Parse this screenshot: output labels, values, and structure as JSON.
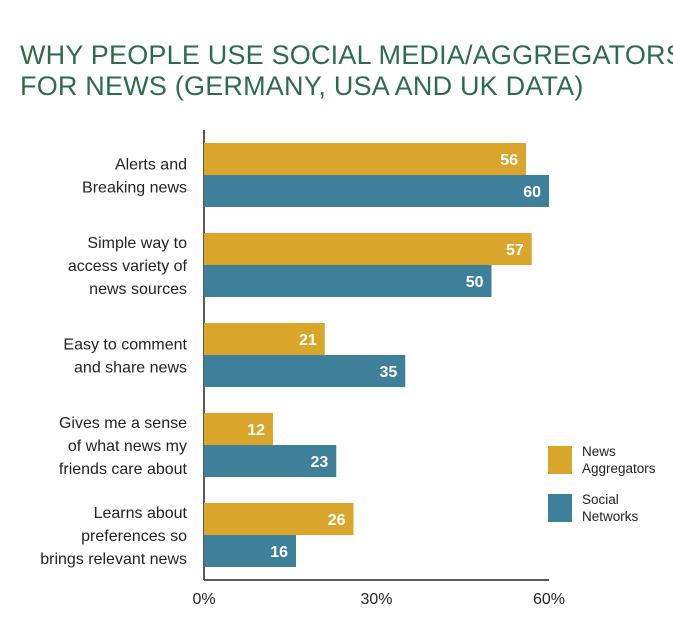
{
  "chart_data": {
    "type": "bar",
    "orientation": "horizontal",
    "title": "WHY PEOPLE USE SOCIAL MEDIA/AGGREGATORS FOR NEWS (GERMANY, USA AND UK DATA)",
    "title_lines": [
      "WHY PEOPLE USE SOCIAL MEDIA/AGGREGATORS",
      "FOR NEWS (GERMANY, USA AND UK DATA)"
    ],
    "categories": [
      [
        "Alerts and",
        "Breaking news"
      ],
      [
        "Simple way to",
        "access variety of",
        "news sources"
      ],
      [
        "Easy to comment",
        "and share news"
      ],
      [
        "Gives me a sense",
        "of what news my",
        "friends care about"
      ],
      [
        "Learns about",
        "preferences so",
        "brings relevant news"
      ]
    ],
    "series": [
      {
        "name": "News Aggregators",
        "legend_lines": [
          "News",
          "Aggregators"
        ],
        "color": "#d9a52a",
        "values": [
          56,
          57,
          21,
          12,
          26
        ]
      },
      {
        "name": "Social Networks",
        "legend_lines": [
          "Social",
          "Networks"
        ],
        "color": "#3e7f99",
        "values": [
          60,
          50,
          35,
          23,
          16
        ]
      }
    ],
    "xlim": [
      0,
      60
    ],
    "xticks": [
      0,
      30,
      60
    ],
    "xtick_labels": [
      "0%",
      "30%",
      "60%"
    ],
    "legend": "right",
    "grid": false
  }
}
